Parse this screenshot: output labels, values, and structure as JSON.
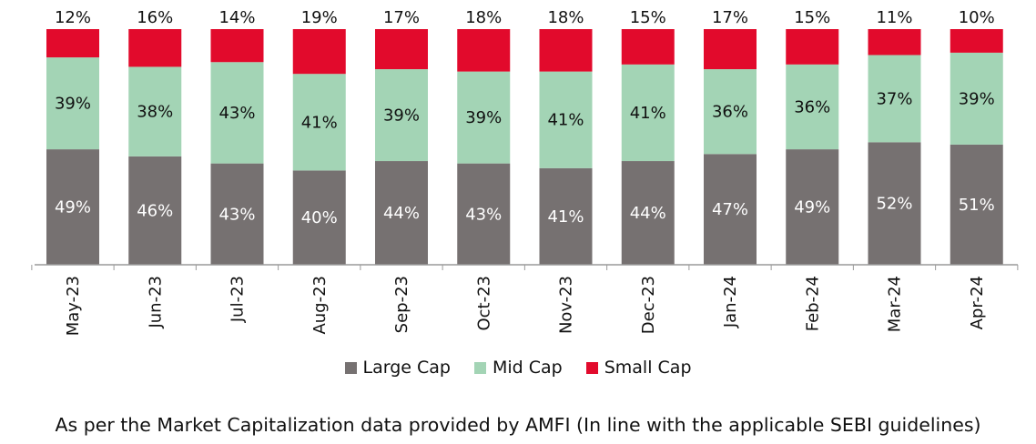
{
  "chart_data": {
    "type": "bar",
    "stacked": true,
    "categories": [
      "May-23",
      "Jun-23",
      "Jul-23",
      "Aug-23",
      "Sep-23",
      "Oct-23",
      "Nov-23",
      "Dec-23",
      "Jan-24",
      "Feb-24",
      "Mar-24",
      "Apr-24"
    ],
    "series": [
      {
        "name": "Large Cap",
        "color": "#767171",
        "values": [
          49,
          46,
          43,
          40,
          44,
          43,
          41,
          44,
          47,
          49,
          52,
          51
        ]
      },
      {
        "name": "Mid Cap",
        "color": "#a3d4b5",
        "values": [
          39,
          38,
          43,
          41,
          39,
          39,
          41,
          41,
          36,
          36,
          37,
          39
        ]
      },
      {
        "name": "Small Cap",
        "color": "#e20a2c",
        "values": [
          12,
          16,
          14,
          19,
          17,
          18,
          18,
          15,
          17,
          15,
          11,
          10
        ]
      }
    ],
    "value_suffix": "%",
    "legend_position": "bottom",
    "grid": false
  },
  "footnote": "As per the Market Capitalization data provided by AMFI (In line with the applicable SEBI guidelines)"
}
